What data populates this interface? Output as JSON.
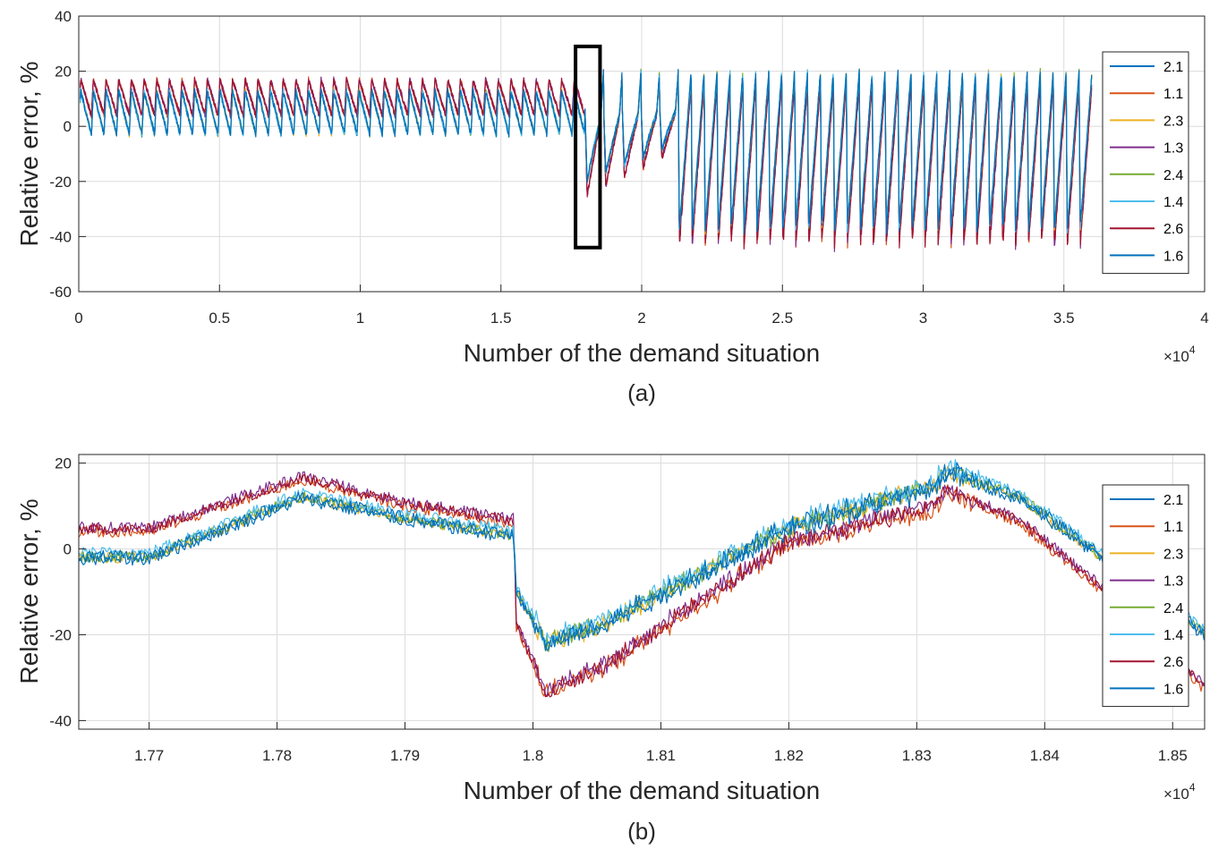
{
  "chart_data": [
    {
      "id": "a",
      "type": "line",
      "caption": "(a)",
      "xlabel": "Number of the demand situation",
      "ylabel": "Relative error,  %",
      "xlim": [
        0,
        4
      ],
      "ylim": [
        -60,
        40
      ],
      "x_multiplier": "×10",
      "x_multiplier_exp": "4",
      "xticks": [
        0,
        0.5,
        1,
        1.5,
        2,
        2.5,
        3,
        3.5,
        4
      ],
      "xtick_labels": [
        "0",
        "0.5",
        "1",
        "1.5",
        "2",
        "2.5",
        "3",
        "3.5",
        "4"
      ],
      "yticks": [
        40,
        20,
        0,
        -20,
        -40,
        -60
      ],
      "ytick_labels": [
        "40",
        "20",
        "0",
        "-20",
        "-40",
        "-60"
      ],
      "grid": true,
      "legend_position": "right",
      "highlight_box": {
        "x": [
          1.765,
          1.852
        ],
        "y": [
          -44,
          29
        ]
      },
      "series": [
        {
          "name": "2.1",
          "color": "#0072BD",
          "group": "lower"
        },
        {
          "name": "1.1",
          "color": "#D95319",
          "group": "upper"
        },
        {
          "name": "2.3",
          "color": "#EDB120",
          "group": "lower"
        },
        {
          "name": "1.3",
          "color": "#7E2F8E",
          "group": "upper"
        },
        {
          "name": "2.4",
          "color": "#77AC30",
          "group": "lower"
        },
        {
          "name": "1.4",
          "color": "#4DBEEE",
          "group": "lower"
        },
        {
          "name": "2.6",
          "color": "#A2142F",
          "group": "upper"
        },
        {
          "name": "1.6",
          "color": "#0072BD",
          "group": "lower"
        }
      ],
      "envelope": {
        "segment_1": {
          "x_range": [
            0,
            1.798
          ],
          "cycles": 40,
          "upper_series_range": [
            4,
            17
          ],
          "lower_series_range": [
            -3,
            13
          ]
        },
        "segment_2": {
          "x_range": [
            1.798,
            2.13
          ],
          "min": -38,
          "max": 24
        },
        "segment_3": {
          "x_range": [
            2.13,
            3.6
          ],
          "cycles": 32,
          "min": -45,
          "max": 24
        }
      }
    },
    {
      "id": "b",
      "type": "line",
      "caption": "(b)",
      "xlabel": "Number of the demand situation",
      "ylabel": "Relative error,  %",
      "xlim": [
        1.7645,
        1.8525
      ],
      "ylim": [
        -42,
        22
      ],
      "x_multiplier": "×10",
      "x_multiplier_exp": "4",
      "xticks": [
        1.77,
        1.78,
        1.79,
        1.8,
        1.81,
        1.82,
        1.83,
        1.84,
        1.85
      ],
      "xtick_labels": [
        "1.77",
        "1.78",
        "1.79",
        "1.8",
        "1.81",
        "1.82",
        "1.83",
        "1.84",
        "1.85"
      ],
      "yticks": [
        20,
        0,
        -20,
        -40
      ],
      "ytick_labels": [
        "20",
        "0",
        "-20",
        "-40"
      ],
      "grid": true,
      "legend_position": "right",
      "series": [
        {
          "name": "2.1",
          "color": "#0072BD",
          "group": "lower"
        },
        {
          "name": "1.1",
          "color": "#D95319",
          "group": "upper"
        },
        {
          "name": "2.3",
          "color": "#EDB120",
          "group": "lower"
        },
        {
          "name": "1.3",
          "color": "#7E2F8E",
          "group": "upper"
        },
        {
          "name": "2.4",
          "color": "#77AC30",
          "group": "lower"
        },
        {
          "name": "1.4",
          "color": "#4DBEEE",
          "group": "lower"
        },
        {
          "name": "2.6",
          "color": "#A2142F",
          "group": "upper"
        },
        {
          "name": "1.6",
          "color": "#0072BD",
          "group": "lower"
        }
      ],
      "profile_lower": {
        "x": [
          1.7645,
          1.77,
          1.782,
          1.79,
          1.7985,
          1.7987,
          1.801,
          1.806,
          1.82,
          1.831,
          1.8325,
          1.838,
          1.845,
          1.8525
        ],
        "y": [
          -2,
          -2,
          12,
          7,
          3,
          -10,
          -22,
          -17,
          5,
          14,
          18,
          12,
          -3,
          -20
        ]
      },
      "profile_upper": {
        "x": [
          1.7645,
          1.77,
          1.782,
          1.79,
          1.7985,
          1.7987,
          1.801,
          1.806,
          1.82,
          1.831,
          1.8325,
          1.838,
          1.845,
          1.8525
        ],
        "y": [
          5,
          5,
          17,
          11,
          7,
          -17,
          -33,
          -26,
          2,
          10,
          14,
          7,
          -10,
          -32
        ]
      }
    }
  ]
}
